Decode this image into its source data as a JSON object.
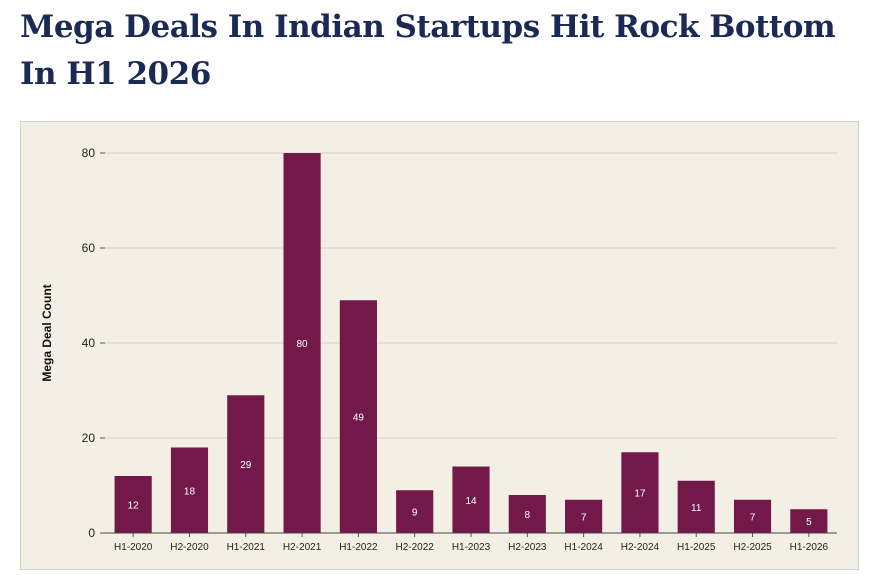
{
  "chart_data": {
    "type": "bar",
    "title": "Mega Deals In Indian Startups Hit Rock Bottom In H1 2026",
    "xlabel": "",
    "ylabel": "Mega Deal Count",
    "categories": [
      "H1-2020",
      "H2-2020",
      "H1-2021",
      "H2-2021",
      "H1-2022",
      "H2-2022",
      "H1-2023",
      "H2-2023",
      "H1-2024",
      "H2-2024",
      "H1-2025",
      "H2-2025",
      "H1-2026"
    ],
    "values": [
      12,
      18,
      29,
      80,
      49,
      9,
      14,
      8,
      7,
      17,
      11,
      7,
      5
    ],
    "ylim": [
      0,
      80
    ],
    "yticks": [
      0,
      20,
      40,
      60,
      80
    ],
    "grid": true,
    "bar_color": "#731949",
    "background_color": "#f3efe4",
    "data_labels": true
  }
}
